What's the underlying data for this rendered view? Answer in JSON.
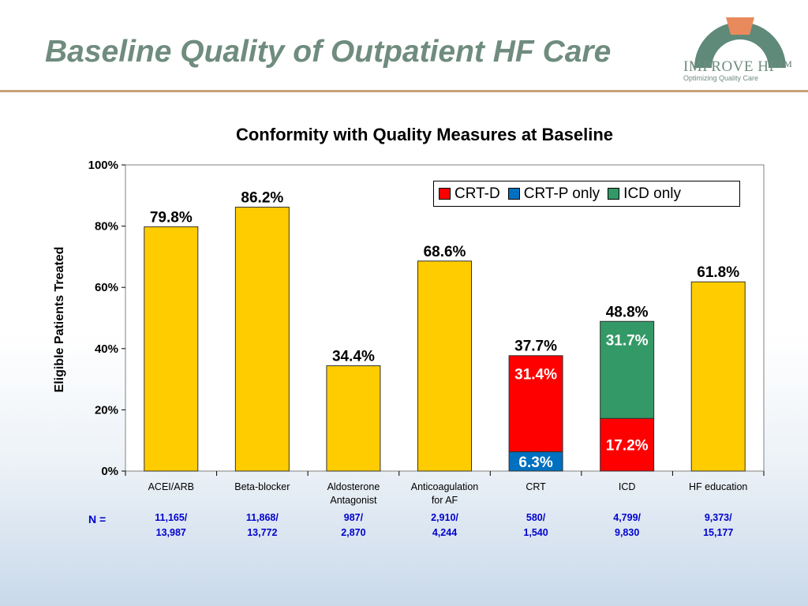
{
  "slide": {
    "title": "Baseline Quality of Outpatient HF Care",
    "logo_text": "IMPROVE HF™",
    "logo_tagline": "Optimizing Quality Care"
  },
  "colors": {
    "bar": "#ffcc00",
    "crt_d": "#ff0000",
    "crt_p": "#0070c0",
    "icd": "#339966",
    "title": "#6f8c7e",
    "n_text": "#0000cc"
  },
  "chart_data": {
    "type": "bar",
    "title": "Conformity with Quality Measures at Baseline",
    "ylabel": "Eligible Patients Treated",
    "xlabel": "",
    "ylim": [
      0,
      100
    ],
    "y_ticks": [
      "0%",
      "20%",
      "40%",
      "60%",
      "80%",
      "100%"
    ],
    "y_tick_values": [
      0,
      20,
      40,
      60,
      80,
      100
    ],
    "grid": false,
    "legend_position": "top-right",
    "legend": [
      {
        "name": "CRT-D",
        "color": "#ff0000"
      },
      {
        "name": "CRT-P only",
        "color": "#0070c0"
      },
      {
        "name": "ICD only",
        "color": "#339966"
      }
    ],
    "categories": [
      {
        "label_lines": [
          "ACEI/ARB"
        ],
        "value": 79.8,
        "value_label": "79.8%",
        "n_num": "11,165/",
        "n_den": "13,987",
        "segments": []
      },
      {
        "label_lines": [
          "Beta-blocker"
        ],
        "value": 86.2,
        "value_label": "86.2%",
        "n_num": "11,868/",
        "n_den": "13,772",
        "segments": []
      },
      {
        "label_lines": [
          "Aldosterone",
          "Antagonist"
        ],
        "value": 34.4,
        "value_label": "34.4%",
        "n_num": "987/",
        "n_den": "2,870",
        "segments": []
      },
      {
        "label_lines": [
          "Anticoagulation",
          "for AF"
        ],
        "value": 68.6,
        "value_label": "68.6%",
        "n_num": "2,910/",
        "n_den": "4,244",
        "segments": []
      },
      {
        "label_lines": [
          "CRT"
        ],
        "value": 37.7,
        "value_label": "37.7%",
        "n_num": "580/",
        "n_den": "1,540",
        "segments": [
          {
            "series": "CRT-P only",
            "value": 6.3,
            "label": "6.3%",
            "color": "#0070c0"
          },
          {
            "series": "CRT-D",
            "value": 31.4,
            "label": "31.4%",
            "color": "#ff0000"
          }
        ]
      },
      {
        "label_lines": [
          "ICD"
        ],
        "value": 48.8,
        "value_label": "48.8%",
        "n_num": "4,799/",
        "n_den": "9,830",
        "segments": [
          {
            "series": "CRT-D",
            "value": 17.2,
            "label": "17.2%",
            "color": "#ff0000"
          },
          {
            "series": "ICD only",
            "value": 31.7,
            "label": "31.7%",
            "color": "#339966"
          }
        ]
      },
      {
        "label_lines": [
          "HF education"
        ],
        "value": 61.8,
        "value_label": "61.8%",
        "n_num": "9,373/",
        "n_den": "15,177",
        "segments": []
      }
    ],
    "n_prefix": "N ="
  }
}
